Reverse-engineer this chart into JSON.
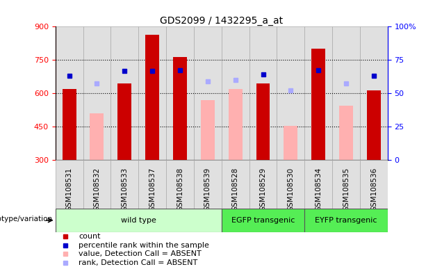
{
  "title": "GDS2099 / 1432295_a_at",
  "samples": [
    "GSM108531",
    "GSM108532",
    "GSM108533",
    "GSM108537",
    "GSM108538",
    "GSM108539",
    "GSM108528",
    "GSM108529",
    "GSM108530",
    "GSM108534",
    "GSM108535",
    "GSM108536"
  ],
  "count_values": [
    620,
    null,
    645,
    865,
    765,
    null,
    null,
    645,
    null,
    800,
    null,
    615
  ],
  "absent_value_values": [
    null,
    510,
    null,
    null,
    null,
    570,
    620,
    null,
    455,
    null,
    545,
    null
  ],
  "percentile_rank_present": [
    680,
    null,
    700,
    700,
    705,
    null,
    null,
    685,
    null,
    705,
    null,
    680
  ],
  "percentile_rank_absent": [
    null,
    645,
    null,
    null,
    null,
    655,
    660,
    null,
    615,
    null,
    645,
    null
  ],
  "groups": [
    {
      "label": "wild type",
      "start": 0,
      "end": 6,
      "color": "#ccffcc"
    },
    {
      "label": "EGFP transgenic",
      "start": 6,
      "end": 9,
      "color": "#55ee55"
    },
    {
      "label": "EYFP transgenic",
      "start": 9,
      "end": 12,
      "color": "#55ee55"
    }
  ],
  "ylim_left": [
    300,
    900
  ],
  "ylim_right": [
    0,
    100
  ],
  "yticks_left": [
    300,
    450,
    600,
    750,
    900
  ],
  "yticks_right": [
    0,
    25,
    50,
    75,
    100
  ],
  "count_color": "#cc0000",
  "absent_value_color": "#ffb0b0",
  "present_rank_color": "#0000cc",
  "absent_rank_color": "#aaaaff",
  "bg_color": "#e0e0e0",
  "label_fontsize": 7.5,
  "title_fontsize": 10,
  "legend_fontsize": 8,
  "genotype_label": "genotype/variation"
}
